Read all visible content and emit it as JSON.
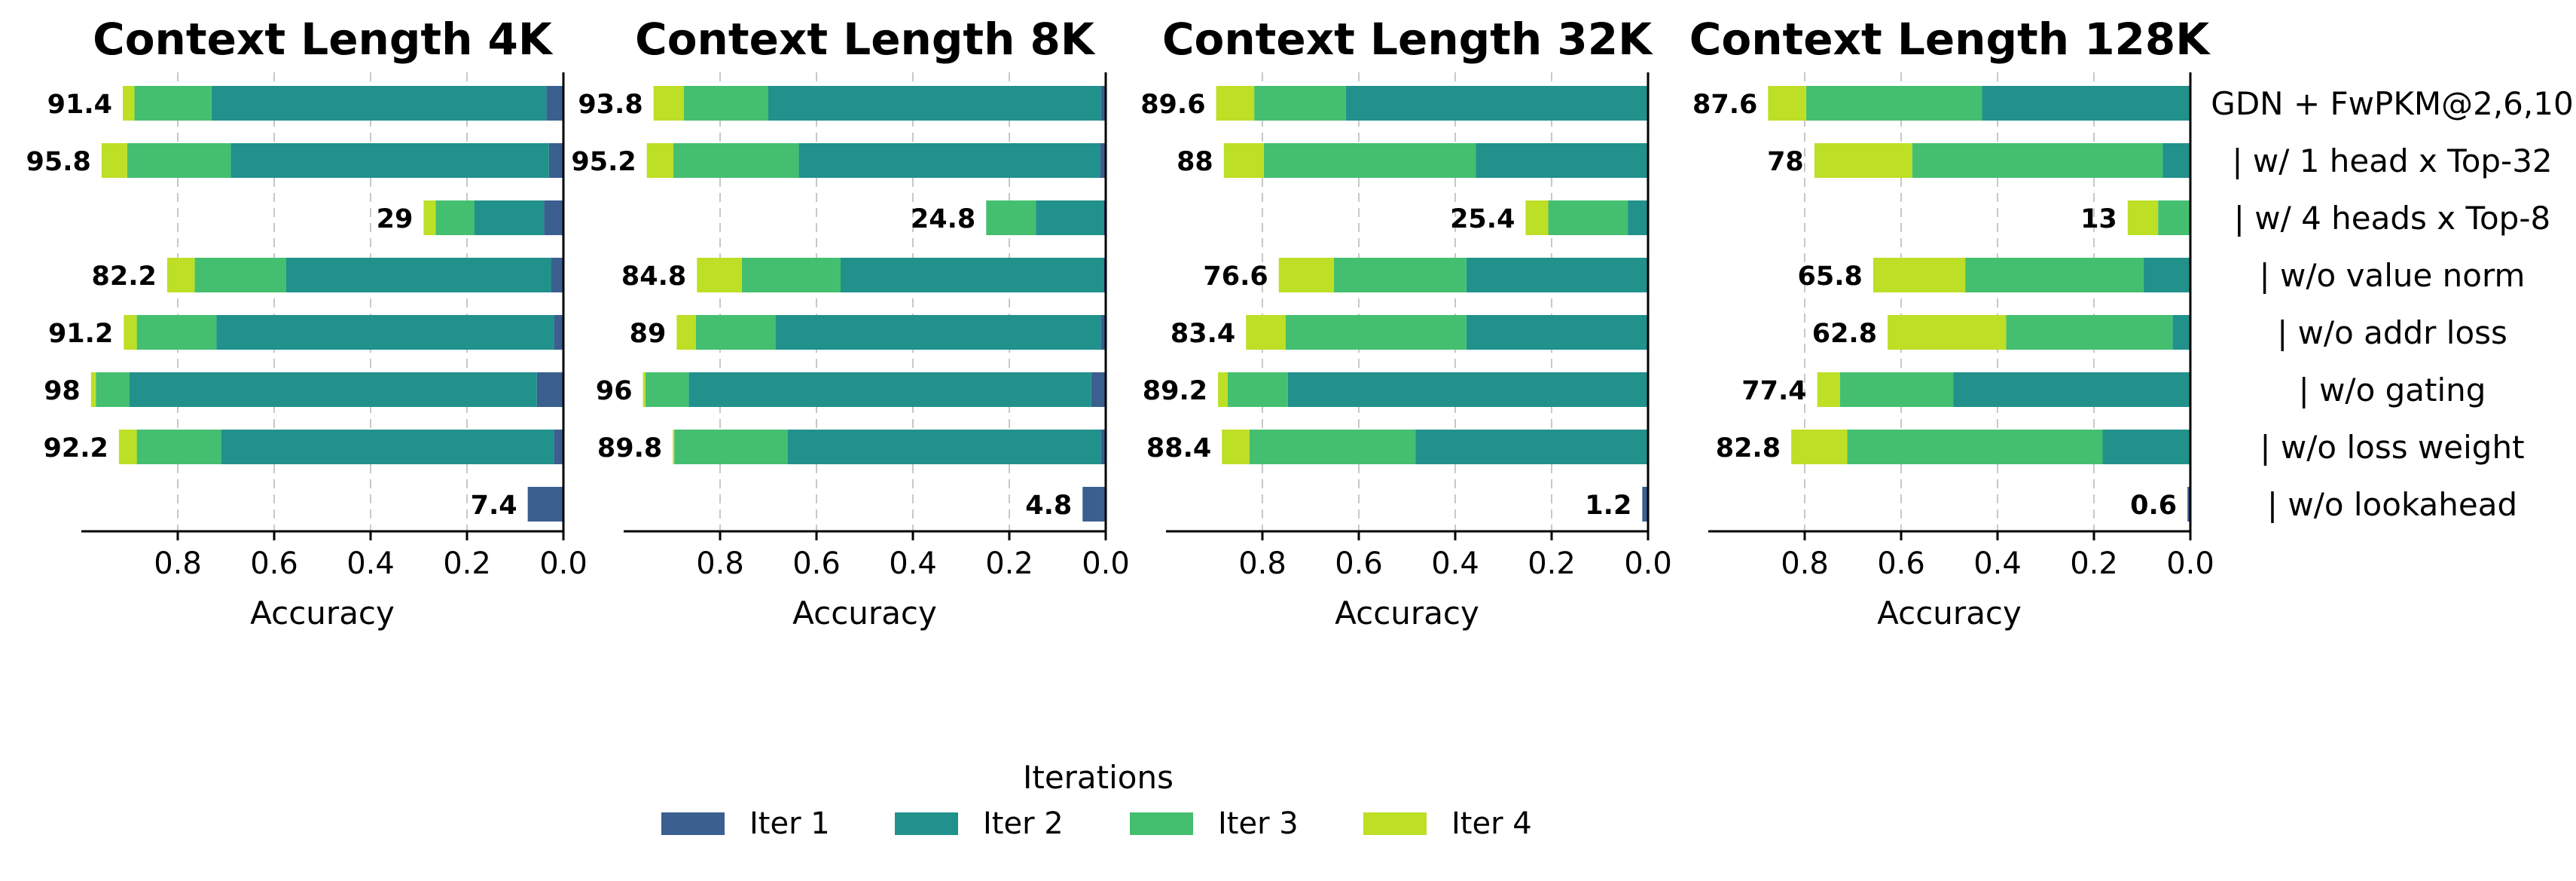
{
  "chart_data": {
    "type": "bar",
    "orientation": "horizontal-stacked",
    "xlabel": "Accuracy",
    "xlim": [
      1.0,
      0.0
    ],
    "xticks": [
      "0.8",
      "0.6",
      "0.4",
      "0.2",
      "0.0"
    ],
    "grid": "vertical dashed",
    "categories": [
      "GDN + FwPKM@2,6,10",
      "| w/ 1 head x Top-32",
      "| w/ 4 heads x Top-8",
      "| w/o value norm",
      "| w/o addr loss",
      "| w/o gating",
      "| w/o loss weight",
      "| w/o lookahead"
    ],
    "legend": {
      "title": "Iterations",
      "placement": "bottom-center",
      "entries": [
        {
          "name": "Iter 1",
          "color": "#3b5f8f"
        },
        {
          "name": "Iter 2",
          "color": "#21918c"
        },
        {
          "name": "Iter 3",
          "color": "#44bf70"
        },
        {
          "name": "Iter 4",
          "color": "#bddf26"
        }
      ]
    },
    "panels": [
      {
        "title": "Context Length 4K",
        "labels": [
          "91.4",
          "95.8",
          "29",
          "82.2",
          "91.2",
          "98",
          "92.2",
          "7.4"
        ],
        "series": [
          {
            "name": "Iter 1",
            "values": [
              0.035,
              0.03,
              0.04,
              0.025,
              0.02,
              0.055,
              0.02,
              0.074
            ]
          },
          {
            "name": "Iter 2",
            "values": [
              0.695,
              0.66,
              0.145,
              0.55,
              0.7,
              0.845,
              0.69,
              0
            ]
          },
          {
            "name": "Iter 3",
            "values": [
              0.16,
              0.215,
              0.08,
              0.19,
              0.165,
              0.07,
              0.175,
              0
            ]
          },
          {
            "name": "Iter 4",
            "values": [
              0.024,
              0.053,
              0.025,
              0.057,
              0.027,
              0.01,
              0.037,
              0
            ]
          }
        ]
      },
      {
        "title": "Context Length 8K",
        "labels": [
          "93.8",
          "95.2",
          "24.8",
          "84.8",
          "89",
          "96",
          "89.8",
          "4.8"
        ],
        "series": [
          {
            "name": "Iter 1",
            "values": [
              0.01,
              0.012,
              0.005,
              0.005,
              0.01,
              0.03,
              0.01,
              0.048
            ]
          },
          {
            "name": "Iter 2",
            "values": [
              0.69,
              0.625,
              0.14,
              0.545,
              0.675,
              0.835,
              0.65,
              0
            ]
          },
          {
            "name": "Iter 3",
            "values": [
              0.175,
              0.26,
              0.103,
              0.205,
              0.165,
              0.09,
              0.235,
              0
            ]
          },
          {
            "name": "Iter 4",
            "values": [
              0.063,
              0.055,
              0,
              0.093,
              0.04,
              0.005,
              0.003,
              0
            ]
          }
        ]
      },
      {
        "title": "Context Length 32K",
        "labels": [
          "89.6",
          "88",
          "25.4",
          "76.6",
          "83.4",
          "89.2",
          "88.4",
          "1.2"
        ],
        "series": [
          {
            "name": "Iter 1",
            "values": [
              0.002,
              0.002,
              0.002,
              0.002,
              0.002,
              0.002,
              0.002,
              0.012
            ]
          },
          {
            "name": "Iter 2",
            "values": [
              0.625,
              0.355,
              0.04,
              0.375,
              0.375,
              0.745,
              0.48,
              0
            ]
          },
          {
            "name": "Iter 3",
            "values": [
              0.19,
              0.44,
              0.165,
              0.275,
              0.375,
              0.125,
              0.345,
              0
            ]
          },
          {
            "name": "Iter 4",
            "values": [
              0.079,
              0.083,
              0.047,
              0.114,
              0.082,
              0.02,
              0.057,
              0
            ]
          }
        ]
      },
      {
        "title": "Context Length 128K",
        "labels": [
          "87.6",
          "78",
          "13",
          "65.8",
          "62.8",
          "77.4",
          "82.8",
          "0.6"
        ],
        "series": [
          {
            "name": "Iter 1",
            "values": [
              0.002,
              0.002,
              0.002,
              0.002,
              0.002,
              0.002,
              0.002,
              0.006
            ]
          },
          {
            "name": "Iter 2",
            "values": [
              0.43,
              0.055,
              0,
              0.095,
              0.035,
              0.49,
              0.18,
              0
            ]
          },
          {
            "name": "Iter 3",
            "values": [
              0.365,
              0.52,
              0.065,
              0.37,
              0.345,
              0.235,
              0.53,
              0
            ]
          },
          {
            "name": "Iter 4",
            "values": [
              0.079,
              0.203,
              0.063,
              0.191,
              0.246,
              0.047,
              0.116,
              0
            ]
          }
        ]
      }
    ]
  }
}
